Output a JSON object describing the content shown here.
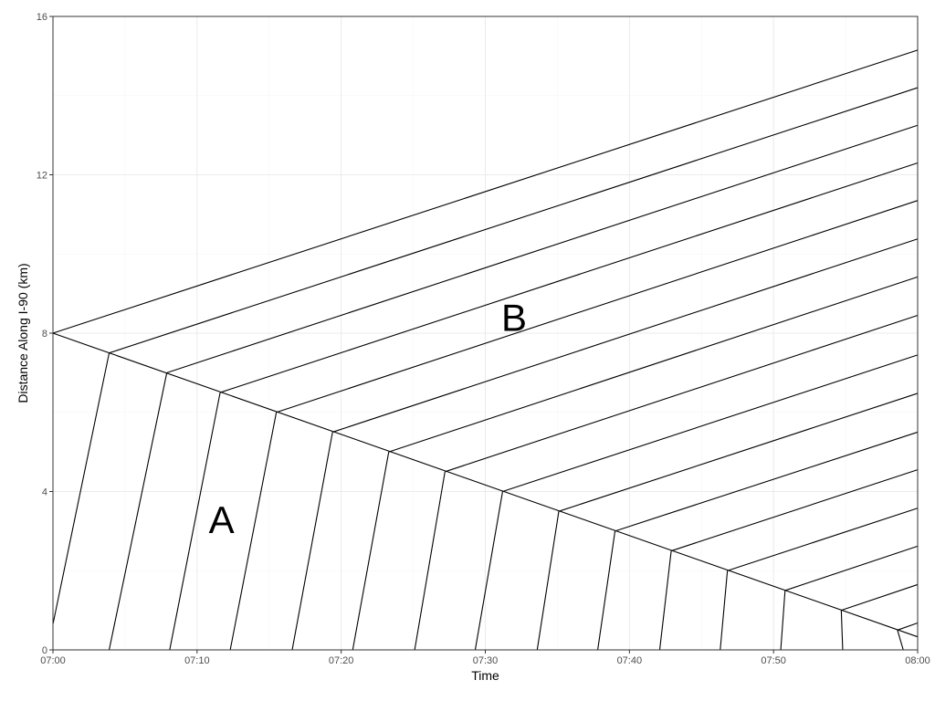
{
  "chart_data": {
    "type": "line",
    "title": "",
    "xlabel": "Time",
    "ylabel": "Distance Along I-90 (km)",
    "xlim": [
      "07:00",
      "08:00"
    ],
    "ylim": [
      0,
      16
    ],
    "x_ticks": [
      "07:00",
      "07:10",
      "07:20",
      "07:30",
      "07:40",
      "07:50",
      "08:00"
    ],
    "y_ticks": [
      0,
      4,
      8,
      12,
      16
    ],
    "grid": true,
    "legend": "none",
    "annotations": [
      {
        "text": "A",
        "x": "07:11.7",
        "y": 3.3
      },
      {
        "text": "B",
        "x": "07:32.0",
        "y": 8.4
      }
    ],
    "series": [
      {
        "line_color": "#000000",
        "points": [
          [
            "07:00.0",
            8.0
          ],
          [
            "08:00.0",
            15.15
          ]
        ]
      },
      {
        "line_color": "#000000",
        "points": [
          [
            "07:03.9",
            7.5
          ],
          [
            "08:00.0",
            14.2
          ]
        ]
      },
      {
        "line_color": "#000000",
        "points": [
          [
            "07:07.9",
            7.0
          ],
          [
            "08:00.0",
            13.25
          ]
        ]
      },
      {
        "line_color": "#000000",
        "points": [
          [
            "07:11.6",
            6.5
          ],
          [
            "08:00.0",
            12.3
          ]
        ]
      },
      {
        "line_color": "#000000",
        "points": [
          [
            "07:15.5",
            6.0
          ],
          [
            "08:00.0",
            11.35
          ]
        ]
      },
      {
        "line_color": "#000000",
        "points": [
          [
            "07:19.4",
            5.5
          ],
          [
            "08:00.0",
            10.38
          ]
        ]
      },
      {
        "line_color": "#000000",
        "points": [
          [
            "07:23.3",
            5.0
          ],
          [
            "08:00.0",
            9.42
          ]
        ]
      },
      {
        "line_color": "#000000",
        "points": [
          [
            "07:27.2",
            4.5
          ],
          [
            "08:00.0",
            8.45
          ]
        ]
      },
      {
        "line_color": "#000000",
        "points": [
          [
            "07:31.2",
            4.0
          ],
          [
            "08:00.0",
            7.45
          ]
        ]
      },
      {
        "line_color": "#000000",
        "points": [
          [
            "07:35.1",
            3.5
          ],
          [
            "08:00.0",
            6.48
          ]
        ]
      },
      {
        "line_color": "#000000",
        "points": [
          [
            "07:39.0",
            3.0
          ],
          [
            "08:00.0",
            5.5
          ]
        ]
      },
      {
        "line_color": "#000000",
        "points": [
          [
            "07:42.9",
            2.5
          ],
          [
            "08:00.0",
            4.55
          ]
        ]
      },
      {
        "line_color": "#000000",
        "points": [
          [
            "07:46.8",
            2.0
          ],
          [
            "08:00.0",
            3.58
          ]
        ]
      },
      {
        "line_color": "#000000",
        "points": [
          [
            "07:50.8",
            1.5
          ],
          [
            "08:00.0",
            2.62
          ]
        ]
      },
      {
        "line_color": "#000000",
        "points": [
          [
            "07:54.7",
            1.0
          ],
          [
            "08:00.0",
            1.65
          ]
        ]
      },
      {
        "line_color": "#000000",
        "points": [
          [
            "07:58.6",
            0.5
          ],
          [
            "08:00.0",
            0.68
          ]
        ]
      },
      {
        "line_color": "#000000",
        "points": [
          [
            "07:00.0",
            8.0
          ],
          [
            "08:00.0",
            0.33
          ]
        ]
      },
      {
        "line_color": "#000000",
        "points": [
          [
            "07:00.0",
            0.65
          ],
          [
            "07:03.9",
            7.5
          ]
        ]
      },
      {
        "line_color": "#000000",
        "points": [
          [
            "07:03.9",
            0.0
          ],
          [
            "07:07.9",
            7.0
          ]
        ]
      },
      {
        "line_color": "#000000",
        "points": [
          [
            "07:08.1",
            0.0
          ],
          [
            "07:11.6",
            6.5
          ]
        ]
      },
      {
        "line_color": "#000000",
        "points": [
          [
            "07:12.3",
            0.0
          ],
          [
            "07:15.5",
            6.0
          ]
        ]
      },
      {
        "line_color": "#000000",
        "points": [
          [
            "07:16.6",
            0.0
          ],
          [
            "07:19.4",
            5.5
          ]
        ]
      },
      {
        "line_color": "#000000",
        "points": [
          [
            "07:20.8",
            0.0
          ],
          [
            "07:23.3",
            5.0
          ]
        ]
      },
      {
        "line_color": "#000000",
        "points": [
          [
            "07:25.1",
            0.0
          ],
          [
            "07:27.2",
            4.5
          ]
        ]
      },
      {
        "line_color": "#000000",
        "points": [
          [
            "07:29.3",
            0.0
          ],
          [
            "07:31.2",
            4.0
          ]
        ]
      },
      {
        "line_color": "#000000",
        "points": [
          [
            "07:33.6",
            0.0
          ],
          [
            "07:35.1",
            3.5
          ]
        ]
      },
      {
        "line_color": "#000000",
        "points": [
          [
            "07:37.8",
            0.0
          ],
          [
            "07:39.0",
            3.0
          ]
        ]
      },
      {
        "line_color": "#000000",
        "points": [
          [
            "07:42.1",
            0.0
          ],
          [
            "07:42.9",
            2.5
          ]
        ]
      },
      {
        "line_color": "#000000",
        "points": [
          [
            "07:46.3",
            0.0
          ],
          [
            "07:46.8",
            2.0
          ]
        ]
      },
      {
        "line_color": "#000000",
        "points": [
          [
            "07:50.5",
            0.0
          ],
          [
            "07:50.8",
            1.5
          ]
        ]
      },
      {
        "line_color": "#000000",
        "points": [
          [
            "07:54.8",
            0.0
          ],
          [
            "07:54.7",
            1.0
          ]
        ]
      },
      {
        "line_color": "#000000",
        "points": [
          [
            "07:59.0",
            0.0
          ],
          [
            "07:58.6",
            0.5
          ]
        ]
      }
    ]
  },
  "style": {
    "panel_border": "#333333",
    "grid_major": "#ebebeb",
    "grid_minor": "#f5f5f5",
    "tick_color": "#333333"
  }
}
